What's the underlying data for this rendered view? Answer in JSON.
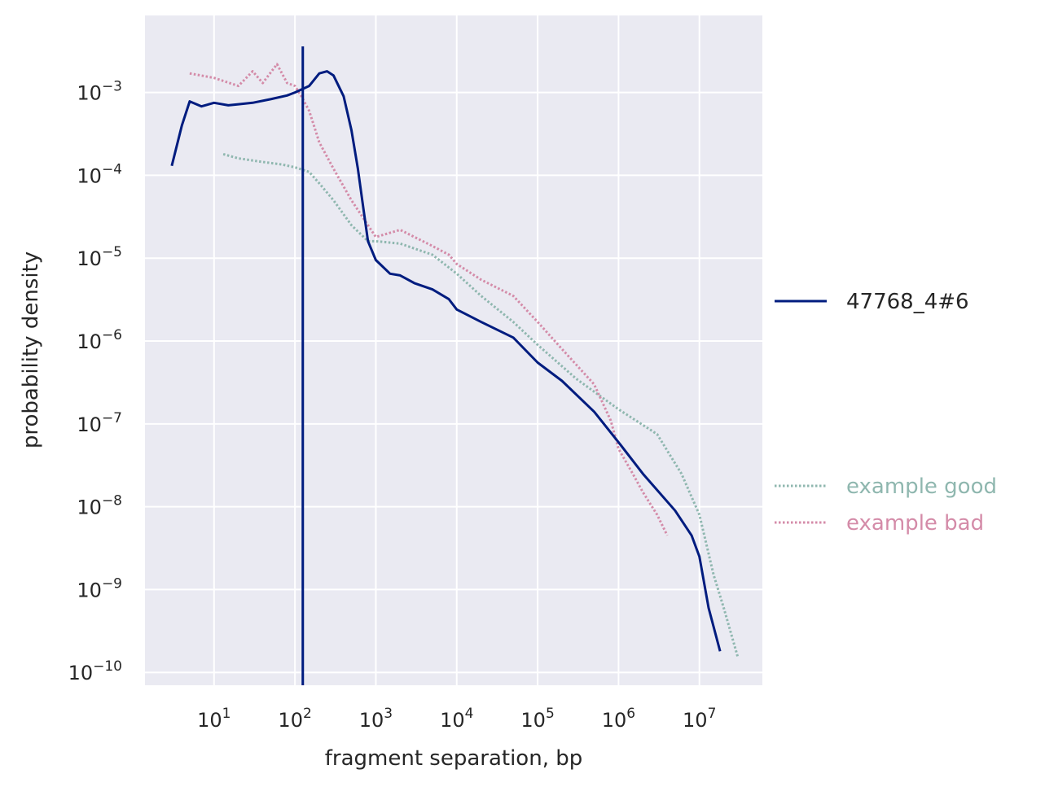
{
  "chart_data": {
    "type": "line",
    "xlabel": "fragment separation, bp",
    "ylabel": "probability density",
    "x_scale": "log",
    "y_scale": "log",
    "xlim": [
      1.4,
      60000000
    ],
    "ylim": [
      7e-11,
      0.0085
    ],
    "grid": true,
    "background": "#eaeaf2",
    "x_ticks": [
      {
        "base": "10",
        "exp": "1",
        "value": 10
      },
      {
        "base": "10",
        "exp": "2",
        "value": 100
      },
      {
        "base": "10",
        "exp": "3",
        "value": 1000
      },
      {
        "base": "10",
        "exp": "4",
        "value": 10000
      },
      {
        "base": "10",
        "exp": "5",
        "value": 100000
      },
      {
        "base": "10",
        "exp": "6",
        "value": 1000000
      },
      {
        "base": "10",
        "exp": "7",
        "value": 10000000
      }
    ],
    "y_ticks": [
      {
        "base": "10",
        "exp": "−3",
        "value": 0.001
      },
      {
        "base": "10",
        "exp": "−4",
        "value": 0.0001
      },
      {
        "base": "10",
        "exp": "−5",
        "value": 1e-05
      },
      {
        "base": "10",
        "exp": "−6",
        "value": 1e-06
      },
      {
        "base": "10",
        "exp": "−7",
        "value": 1e-07
      },
      {
        "base": "10",
        "exp": "−8",
        "value": 1e-08
      },
      {
        "base": "10",
        "exp": "−9",
        "value": 1e-09
      },
      {
        "base": "10",
        "exp": "−10",
        "value": 1e-10
      }
    ],
    "vline": {
      "x": 125,
      "color": "#001c7f"
    },
    "series": [
      {
        "name": "47768_4#6",
        "color": "#001c7f",
        "style": "solid",
        "legend_group": "top",
        "points": [
          [
            3,
            0.00013
          ],
          [
            4,
            0.0004
          ],
          [
            5,
            0.00078
          ],
          [
            7,
            0.00068
          ],
          [
            10,
            0.00075
          ],
          [
            15,
            0.0007
          ],
          [
            20,
            0.00072
          ],
          [
            30,
            0.00075
          ],
          [
            50,
            0.00083
          ],
          [
            80,
            0.00092
          ],
          [
            100,
            0.001
          ],
          [
            150,
            0.0012
          ],
          [
            200,
            0.0017
          ],
          [
            250,
            0.0018
          ],
          [
            300,
            0.0016
          ],
          [
            400,
            0.0009
          ],
          [
            500,
            0.00035
          ],
          [
            600,
            0.00012
          ],
          [
            700,
            4e-05
          ],
          [
            800,
            1.6e-05
          ],
          [
            1000,
            9.5e-06
          ],
          [
            1500,
            6.5e-06
          ],
          [
            2000,
            6.2e-06
          ],
          [
            3000,
            5e-06
          ],
          [
            5000,
            4.2e-06
          ],
          [
            8000,
            3.2e-06
          ],
          [
            10000,
            2.4e-06
          ],
          [
            20000,
            1.7e-06
          ],
          [
            50000,
            1.1e-06
          ],
          [
            100000,
            5.5e-07
          ],
          [
            200000,
            3.3e-07
          ],
          [
            500000,
            1.4e-07
          ],
          [
            1000000,
            6e-08
          ],
          [
            2000000,
            2.5e-08
          ],
          [
            5000000,
            9e-09
          ],
          [
            8000000,
            4.5e-09
          ],
          [
            10000000,
            2.5e-09
          ],
          [
            13000000,
            6e-10
          ],
          [
            18000000,
            1.8e-10
          ]
        ]
      },
      {
        "name": "example good",
        "color": "#8fb7af",
        "style": "dotted",
        "legend_group": "bottom",
        "points": [
          [
            13,
            0.00018
          ],
          [
            20,
            0.00016
          ],
          [
            40,
            0.000145
          ],
          [
            70,
            0.000135
          ],
          [
            100,
            0.000125
          ],
          [
            150,
            0.00011
          ],
          [
            200,
            8e-05
          ],
          [
            300,
            5e-05
          ],
          [
            500,
            2.5e-05
          ],
          [
            800,
            1.6e-05
          ],
          [
            1000,
            1.6e-05
          ],
          [
            2000,
            1.5e-05
          ],
          [
            5000,
            1.1e-05
          ],
          [
            10000,
            6.5e-06
          ],
          [
            20000,
            3.5e-06
          ],
          [
            50000,
            1.7e-06
          ],
          [
            100000,
            9e-07
          ],
          [
            300000,
            3.5e-07
          ],
          [
            1000000,
            1.5e-07
          ],
          [
            3000000,
            7.5e-08
          ],
          [
            6000000,
            2.5e-08
          ],
          [
            10000000,
            8e-09
          ],
          [
            15000000,
            1.5e-09
          ],
          [
            20000000,
            6e-10
          ],
          [
            30000000,
            1.5e-10
          ]
        ]
      },
      {
        "name": "example bad",
        "color": "#d48ba8",
        "style": "dotted",
        "legend_group": "bottom",
        "points": [
          [
            5,
            0.0017
          ],
          [
            10,
            0.0015
          ],
          [
            20,
            0.0012
          ],
          [
            30,
            0.0018
          ],
          [
            40,
            0.0013
          ],
          [
            60,
            0.0022
          ],
          [
            80,
            0.0013
          ],
          [
            100,
            0.0012
          ],
          [
            120,
            0.0009
          ],
          [
            150,
            0.0006
          ],
          [
            200,
            0.00025
          ],
          [
            300,
            0.00012
          ],
          [
            500,
            5e-05
          ],
          [
            800,
            2.5e-05
          ],
          [
            1000,
            1.8e-05
          ],
          [
            2000,
            2.2e-05
          ],
          [
            3000,
            1.8e-05
          ],
          [
            5000,
            1.4e-05
          ],
          [
            8000,
            1.1e-05
          ],
          [
            10000,
            8.5e-06
          ],
          [
            20000,
            5.5e-06
          ],
          [
            50000,
            3.5e-06
          ],
          [
            100000,
            1.7e-06
          ],
          [
            200000,
            8e-07
          ],
          [
            500000,
            3e-07
          ],
          [
            800000,
            1.1e-07
          ],
          [
            1000000,
            5e-08
          ],
          [
            1500000,
            2.5e-08
          ],
          [
            2000000,
            1.5e-08
          ],
          [
            3000000,
            8e-09
          ],
          [
            4000000,
            4.5e-09
          ]
        ]
      }
    ]
  }
}
